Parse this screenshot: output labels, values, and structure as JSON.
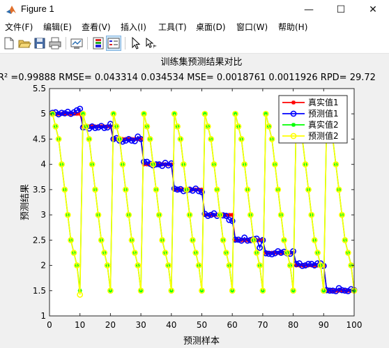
{
  "window": {
    "title": "Figure 1",
    "minimize_glyph": "—",
    "maximize_glyph": "☐",
    "close_glyph": "✕"
  },
  "menu": [
    "文件(F)",
    "编辑(E)",
    "查看(V)",
    "插入(I)",
    "工具(T)",
    "桌面(D)",
    "窗口(W)",
    "帮助(H)"
  ],
  "toolbar_icons": [
    "new-figure-icon",
    "open-file-icon",
    "save-icon",
    "print-icon",
    "link-plot-icon",
    "insert-colorbar-icon",
    "insert-legend-icon",
    "edit-plot-arrow-icon",
    "data-cursor-icon"
  ],
  "colors": {
    "red": "#ff0000",
    "blue": "#0000ff",
    "green": "#00ff00",
    "yellow": "#ffff00"
  },
  "chart_data": {
    "type": "line",
    "title": "训练集预测结果对比",
    "subtitle": "R² =0.99888 RMSE= 0.043314    0.034534 MSE= 0.0018761    0.0011926 RPD= 29.72",
    "xlabel": "预测样本",
    "ylabel": "预测结果",
    "xlim": [
      0,
      100
    ],
    "ylim": [
      1,
      5.5
    ],
    "xticks": [
      0,
      10,
      20,
      30,
      40,
      50,
      60,
      70,
      80,
      90,
      100
    ],
    "yticks": [
      1,
      1.5,
      2,
      2.5,
      3,
      3.5,
      4,
      4.5,
      5,
      5.5
    ],
    "grid": false,
    "legend_position": "top-right",
    "x": [
      1,
      2,
      3,
      4,
      5,
      6,
      7,
      8,
      9,
      10,
      11,
      12,
      13,
      14,
      15,
      16,
      17,
      18,
      19,
      20,
      21,
      22,
      23,
      24,
      25,
      26,
      27,
      28,
      29,
      30,
      31,
      32,
      33,
      34,
      35,
      36,
      37,
      38,
      39,
      40,
      41,
      42,
      43,
      44,
      45,
      46,
      47,
      48,
      49,
      50,
      51,
      52,
      53,
      54,
      55,
      56,
      57,
      58,
      59,
      60,
      61,
      62,
      63,
      64,
      65,
      66,
      67,
      68,
      69,
      70,
      71,
      72,
      73,
      74,
      75,
      76,
      77,
      78,
      79,
      80,
      81,
      82,
      83,
      84,
      85,
      86,
      87,
      88,
      89,
      90,
      91,
      92,
      93,
      94,
      95,
      96,
      97,
      98,
      99,
      100
    ],
    "series": [
      {
        "name": "真实值1",
        "color": "#ff0000",
        "marker": "asterisk",
        "values": [
          5,
          5,
          5,
          5,
          5,
          5,
          5,
          5,
          5,
          5,
          4.75,
          4.75,
          4.75,
          4.75,
          4.75,
          4.75,
          4.75,
          4.75,
          4.75,
          4.75,
          4.5,
          4.5,
          4.5,
          4.5,
          4.5,
          4.5,
          4.5,
          4.5,
          4.5,
          4.5,
          4,
          4,
          4,
          4,
          4,
          4,
          4,
          4,
          4,
          4,
          3.5,
          3.5,
          3.5,
          3.5,
          3.5,
          3.5,
          3.5,
          3.5,
          3.5,
          3.5,
          3,
          3,
          3,
          3,
          3,
          3,
          3,
          3,
          3,
          3,
          2.5,
          2.5,
          2.5,
          2.5,
          2.5,
          2.5,
          2.5,
          2.5,
          2.5,
          2.5,
          2.25,
          2.25,
          2.25,
          2.25,
          2.25,
          2.25,
          2.25,
          2.25,
          2.25,
          2.25,
          2,
          2,
          2,
          2,
          2,
          2,
          2,
          2,
          2,
          2,
          1.5,
          1.5,
          1.5,
          1.5,
          1.5,
          1.5,
          1.5,
          1.5,
          1.5,
          1.5
        ]
      },
      {
        "name": "预测值1",
        "color": "#0000ff",
        "marker": "circle",
        "values": [
          5.02,
          5.03,
          4.99,
          5.02,
          5.01,
          5.04,
          5.0,
          5.03,
          5.07,
          5.1,
          4.73,
          4.74,
          4.71,
          4.75,
          4.72,
          4.73,
          4.76,
          4.72,
          4.73,
          4.8,
          4.5,
          4.52,
          4.47,
          4.45,
          4.47,
          4.5,
          4.47,
          4.46,
          4.55,
          4.5,
          4.05,
          4.05,
          4.01,
          3.98,
          4.0,
          4.0,
          3.97,
          4.03,
          3.98,
          4.02,
          3.52,
          3.5,
          3.51,
          3.47,
          3.49,
          3.5,
          3.48,
          3.52,
          3.47,
          3.45,
          3.02,
          2.98,
          3.0,
          3.03,
          2.98,
          3.0,
          2.99,
          2.98,
          2.9,
          2.88,
          2.51,
          2.51,
          2.49,
          2.55,
          2.49,
          2.5,
          2.52,
          2.53,
          2.35,
          2.5,
          2.24,
          2.23,
          2.22,
          2.24,
          2.28,
          2.25,
          2.27,
          2.24,
          2.23,
          2.28,
          2.03,
          2.04,
          1.99,
          2.0,
          2.03,
          2.03,
          2.0,
          2.04,
          2.04,
          1.99,
          1.51,
          1.5,
          1.5,
          1.49,
          1.55,
          1.51,
          1.5,
          1.49,
          1.53,
          1.51
        ]
      },
      {
        "name": "真实值2",
        "color": "#00ff00",
        "marker": "asterisk",
        "values": [
          5,
          4.75,
          4.5,
          4,
          3.5,
          3,
          2.5,
          2.25,
          2,
          1.5,
          5,
          4.75,
          4.5,
          4,
          3.5,
          3,
          2.5,
          2.25,
          2,
          1.5,
          5,
          4.75,
          4.5,
          4,
          3.5,
          3,
          2.5,
          2.25,
          2,
          1.5,
          5,
          4.75,
          4.5,
          4,
          3.5,
          3,
          2.5,
          2.25,
          2,
          1.5,
          5,
          4.75,
          4.5,
          4,
          3.5,
          3,
          2.5,
          2.25,
          2,
          1.5,
          5,
          4.75,
          4.5,
          4,
          3.5,
          3,
          2.5,
          2.25,
          2,
          1.5,
          5,
          4.75,
          4.5,
          4,
          3.5,
          3,
          2.5,
          2.25,
          2,
          1.5,
          5,
          4.75,
          4.5,
          4,
          3.5,
          3,
          2.5,
          2.25,
          2,
          1.5,
          5,
          4.75,
          4.5,
          4,
          3.5,
          3,
          2.5,
          2.25,
          2,
          1.5,
          5,
          4.75,
          4.5,
          4,
          3.5,
          3,
          2.5,
          2.25,
          2,
          1.5
        ]
      },
      {
        "name": "预测值2",
        "color": "#ffff00",
        "marker": "circle",
        "values": [
          5,
          4.75,
          4.5,
          4,
          3.5,
          3,
          2.5,
          2.25,
          2,
          1.42,
          5,
          4.75,
          4.5,
          4,
          3.5,
          3,
          2.5,
          2.25,
          2,
          1.5,
          5,
          4.75,
          4.5,
          4,
          3.5,
          3,
          2.5,
          2.25,
          2,
          1.5,
          5,
          4.75,
          4.5,
          4,
          3.5,
          3,
          2.5,
          2.25,
          2,
          1.5,
          5,
          4.75,
          4.5,
          4,
          3.5,
          3,
          2.5,
          2.25,
          2,
          1.5,
          5,
          4.75,
          4.5,
          4,
          3.5,
          3,
          2.5,
          2.25,
          2,
          1.5,
          5,
          4.75,
          4.5,
          4,
          3.5,
          3,
          2.5,
          2.25,
          2,
          1.5,
          5,
          4.75,
          4.5,
          4,
          3.5,
          3,
          2.5,
          2.25,
          2,
          1.5,
          5,
          4.75,
          4.5,
          4,
          3.5,
          3,
          2.5,
          2.25,
          2,
          1.5,
          5,
          4.75,
          4.5,
          4,
          3.5,
          3,
          2.5,
          2.25,
          2,
          1.5
        ]
      }
    ]
  }
}
